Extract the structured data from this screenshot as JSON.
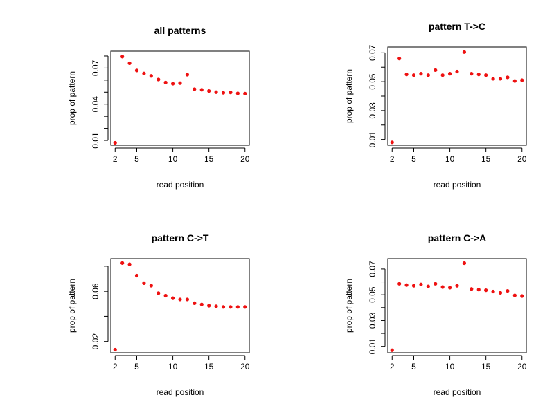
{
  "chart_data": [
    {
      "type": "scatter",
      "title": "all patterns",
      "xlabel": "read position",
      "ylabel": "prop of pattern",
      "xlim": [
        1.4,
        20.6
      ],
      "ylim": [
        0.006,
        0.084
      ],
      "x_ticks": [
        2,
        5,
        10,
        15,
        20
      ],
      "x_tick_labels": [
        "2",
        "5",
        "10",
        "15",
        "20"
      ],
      "y_ticks": [
        0.01,
        0.02,
        0.03,
        0.04,
        0.05,
        0.06,
        0.07,
        0.08
      ],
      "y_tick_labels": [
        "0.01",
        "",
        "",
        "0.04",
        "",
        "",
        "0.07",
        ""
      ],
      "grid": false,
      "series": [
        {
          "color": "#ee1111",
          "x": [
            2,
            3,
            4,
            5,
            6,
            7,
            8,
            9,
            10,
            11,
            12,
            13,
            14,
            15,
            16,
            17,
            18,
            19,
            20
          ],
          "y": [
            0.008,
            0.0795,
            0.074,
            0.068,
            0.0655,
            0.0635,
            0.0605,
            0.058,
            0.057,
            0.0575,
            0.0645,
            0.0525,
            0.052,
            0.051,
            0.05,
            0.0495,
            0.0498,
            0.049,
            0.0488
          ]
        }
      ]
    },
    {
      "type": "scatter",
      "title": "pattern T->C",
      "xlabel": "read position",
      "ylabel": "prop of pattern",
      "xlim": [
        1.4,
        20.6
      ],
      "ylim": [
        0.006,
        0.074
      ],
      "x_ticks": [
        2,
        5,
        10,
        15,
        20
      ],
      "x_tick_labels": [
        "2",
        "5",
        "10",
        "15",
        "20"
      ],
      "y_ticks": [
        0.01,
        0.02,
        0.03,
        0.04,
        0.05,
        0.06,
        0.07
      ],
      "y_tick_labels": [
        "0.01",
        "",
        "0.03",
        "",
        "0.05",
        "",
        "0.07"
      ],
      "grid": false,
      "series": [
        {
          "color": "#ee1111",
          "x": [
            2,
            3,
            4,
            5,
            6,
            7,
            8,
            9,
            10,
            11,
            12,
            13,
            14,
            15,
            16,
            17,
            18,
            19,
            20
          ],
          "y": [
            0.008,
            0.066,
            0.055,
            0.0545,
            0.0555,
            0.0545,
            0.058,
            0.0545,
            0.0555,
            0.057,
            0.0705,
            0.0555,
            0.055,
            0.0545,
            0.052,
            0.052,
            0.053,
            0.0505,
            0.051
          ]
        }
      ]
    },
    {
      "type": "scatter",
      "title": "pattern C->T",
      "xlabel": "read position",
      "ylabel": "prop of pattern",
      "xlim": [
        1.4,
        20.6
      ],
      "ylim": [
        0.011,
        0.086
      ],
      "x_ticks": [
        2,
        5,
        10,
        15,
        20
      ],
      "x_tick_labels": [
        "2",
        "5",
        "10",
        "15",
        "20"
      ],
      "y_ticks": [
        0.02,
        0.04,
        0.06,
        0.08
      ],
      "y_tick_labels": [
        "0.02",
        "",
        "0.06",
        ""
      ],
      "grid": false,
      "series": [
        {
          "color": "#ee1111",
          "x": [
            2,
            3,
            4,
            5,
            6,
            7,
            8,
            9,
            10,
            11,
            12,
            13,
            14,
            15,
            16,
            17,
            18,
            19,
            20
          ],
          "y": [
            0.0135,
            0.0825,
            0.0815,
            0.0725,
            0.0665,
            0.0645,
            0.0585,
            0.0565,
            0.0545,
            0.0535,
            0.0535,
            0.0505,
            0.0495,
            0.0485,
            0.048,
            0.0475,
            0.0475,
            0.0475,
            0.0475
          ]
        }
      ]
    },
    {
      "type": "scatter",
      "title": "pattern C->A",
      "xlabel": "read position",
      "ylabel": "prop of pattern",
      "xlim": [
        1.4,
        20.6
      ],
      "ylim": [
        0.005,
        0.078
      ],
      "x_ticks": [
        2,
        5,
        10,
        15,
        20
      ],
      "x_tick_labels": [
        "2",
        "5",
        "10",
        "15",
        "20"
      ],
      "y_ticks": [
        0.01,
        0.02,
        0.03,
        0.04,
        0.05,
        0.06,
        0.07
      ],
      "y_tick_labels": [
        "0.01",
        "",
        "0.03",
        "",
        "0.05",
        "",
        "0.07"
      ],
      "grid": false,
      "series": [
        {
          "color": "#ee1111",
          "x": [
            2,
            3,
            4,
            5,
            6,
            7,
            8,
            9,
            10,
            11,
            12,
            13,
            14,
            15,
            16,
            17,
            18,
            19,
            20
          ],
          "y": [
            0.007,
            0.0585,
            0.0575,
            0.057,
            0.058,
            0.0565,
            0.0585,
            0.056,
            0.0555,
            0.057,
            0.0745,
            0.0545,
            0.054,
            0.0535,
            0.0525,
            0.0515,
            0.053,
            0.0495,
            0.049
          ]
        }
      ]
    }
  ]
}
